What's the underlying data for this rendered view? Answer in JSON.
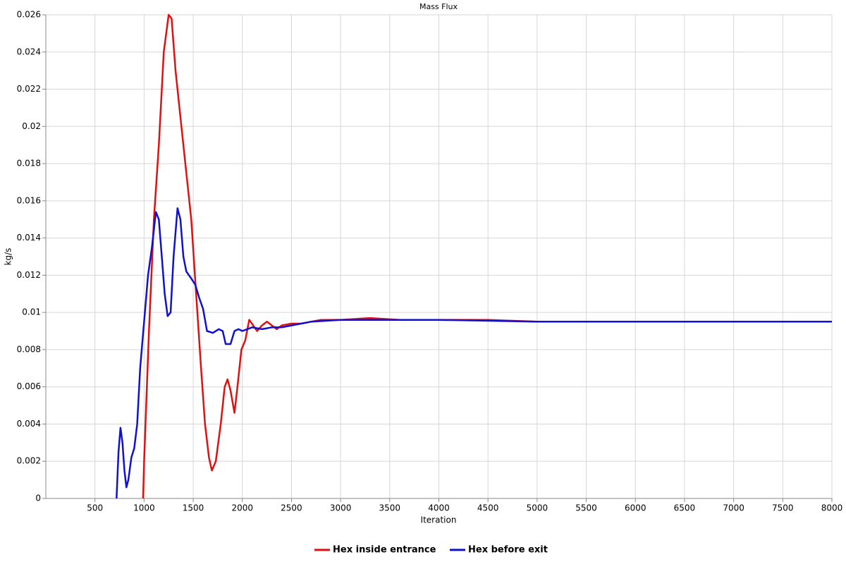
{
  "chart_data": {
    "type": "line",
    "title": "Mass Flux",
    "x_label": "Iteration",
    "y_label": "kg/s",
    "xlim": [
      0,
      8000
    ],
    "xticks": [
      500,
      1000,
      1500,
      2000,
      2500,
      3000,
      3500,
      4000,
      4500,
      5000,
      5500,
      6000,
      6500,
      7000,
      7500,
      8000
    ],
    "ylim": [
      0,
      0.026
    ],
    "yticks": [
      0,
      0.002,
      0.004,
      0.006,
      0.008,
      0.01,
      0.012,
      0.014,
      0.016,
      0.018,
      0.02,
      0.022,
      0.024,
      0.026
    ],
    "grid": true,
    "legend": "bottom",
    "series": [
      {
        "name": "Hex inside entrance",
        "color": "#e01010",
        "x": [
          990,
          1000,
          1050,
          1100,
          1150,
          1200,
          1250,
          1280,
          1320,
          1380,
          1420,
          1480,
          1530,
          1580,
          1620,
          1660,
          1690,
          1730,
          1780,
          1820,
          1850,
          1880,
          1920,
          1950,
          1990,
          2030,
          2070,
          2110,
          2150,
          2200,
          2250,
          2300,
          2350,
          2400,
          2500,
          2600,
          2800,
          3000,
          3300,
          3600,
          4000,
          4500,
          5000,
          6000,
          7000,
          8000
        ],
        "values": [
          0,
          0.002,
          0.009,
          0.015,
          0.019,
          0.024,
          0.026,
          0.0258,
          0.023,
          0.02,
          0.018,
          0.015,
          0.011,
          0.007,
          0.004,
          0.0022,
          0.0015,
          0.002,
          0.004,
          0.006,
          0.0064,
          0.0058,
          0.0046,
          0.006,
          0.008,
          0.0085,
          0.0096,
          0.0093,
          0.009,
          0.0093,
          0.0095,
          0.0093,
          0.0091,
          0.0093,
          0.0094,
          0.0094,
          0.0096,
          0.0096,
          0.0097,
          0.0096,
          0.0096,
          0.0096,
          0.0095,
          0.0095,
          0.0095,
          0.0095
        ]
      },
      {
        "name": "Hex before exit",
        "color": "#1010d0",
        "x": [
          720,
          740,
          760,
          780,
          800,
          820,
          840,
          870,
          900,
          930,
          960,
          1000,
          1040,
          1080,
          1120,
          1150,
          1180,
          1210,
          1240,
          1270,
          1300,
          1340,
          1370,
          1400,
          1430,
          1470,
          1520,
          1560,
          1600,
          1640,
          1700,
          1760,
          1800,
          1830,
          1880,
          1920,
          1960,
          2000,
          2050,
          2100,
          2200,
          2300,
          2400,
          2500,
          2700,
          3000,
          3500,
          4000,
          5000,
          6000,
          7000,
          8000
        ],
        "values": [
          0,
          0.0025,
          0.0038,
          0.003,
          0.0015,
          0.0006,
          0.001,
          0.0022,
          0.0027,
          0.004,
          0.007,
          0.0095,
          0.012,
          0.0135,
          0.0154,
          0.015,
          0.013,
          0.011,
          0.0098,
          0.01,
          0.013,
          0.0156,
          0.015,
          0.013,
          0.0122,
          0.0119,
          0.0115,
          0.0108,
          0.0102,
          0.009,
          0.0089,
          0.0091,
          0.009,
          0.0083,
          0.0083,
          0.009,
          0.0091,
          0.009,
          0.0091,
          0.0092,
          0.0091,
          0.0092,
          0.0092,
          0.0093,
          0.0095,
          0.0096,
          0.0096,
          0.0096,
          0.0095,
          0.0095,
          0.0095,
          0.0095
        ]
      }
    ]
  }
}
